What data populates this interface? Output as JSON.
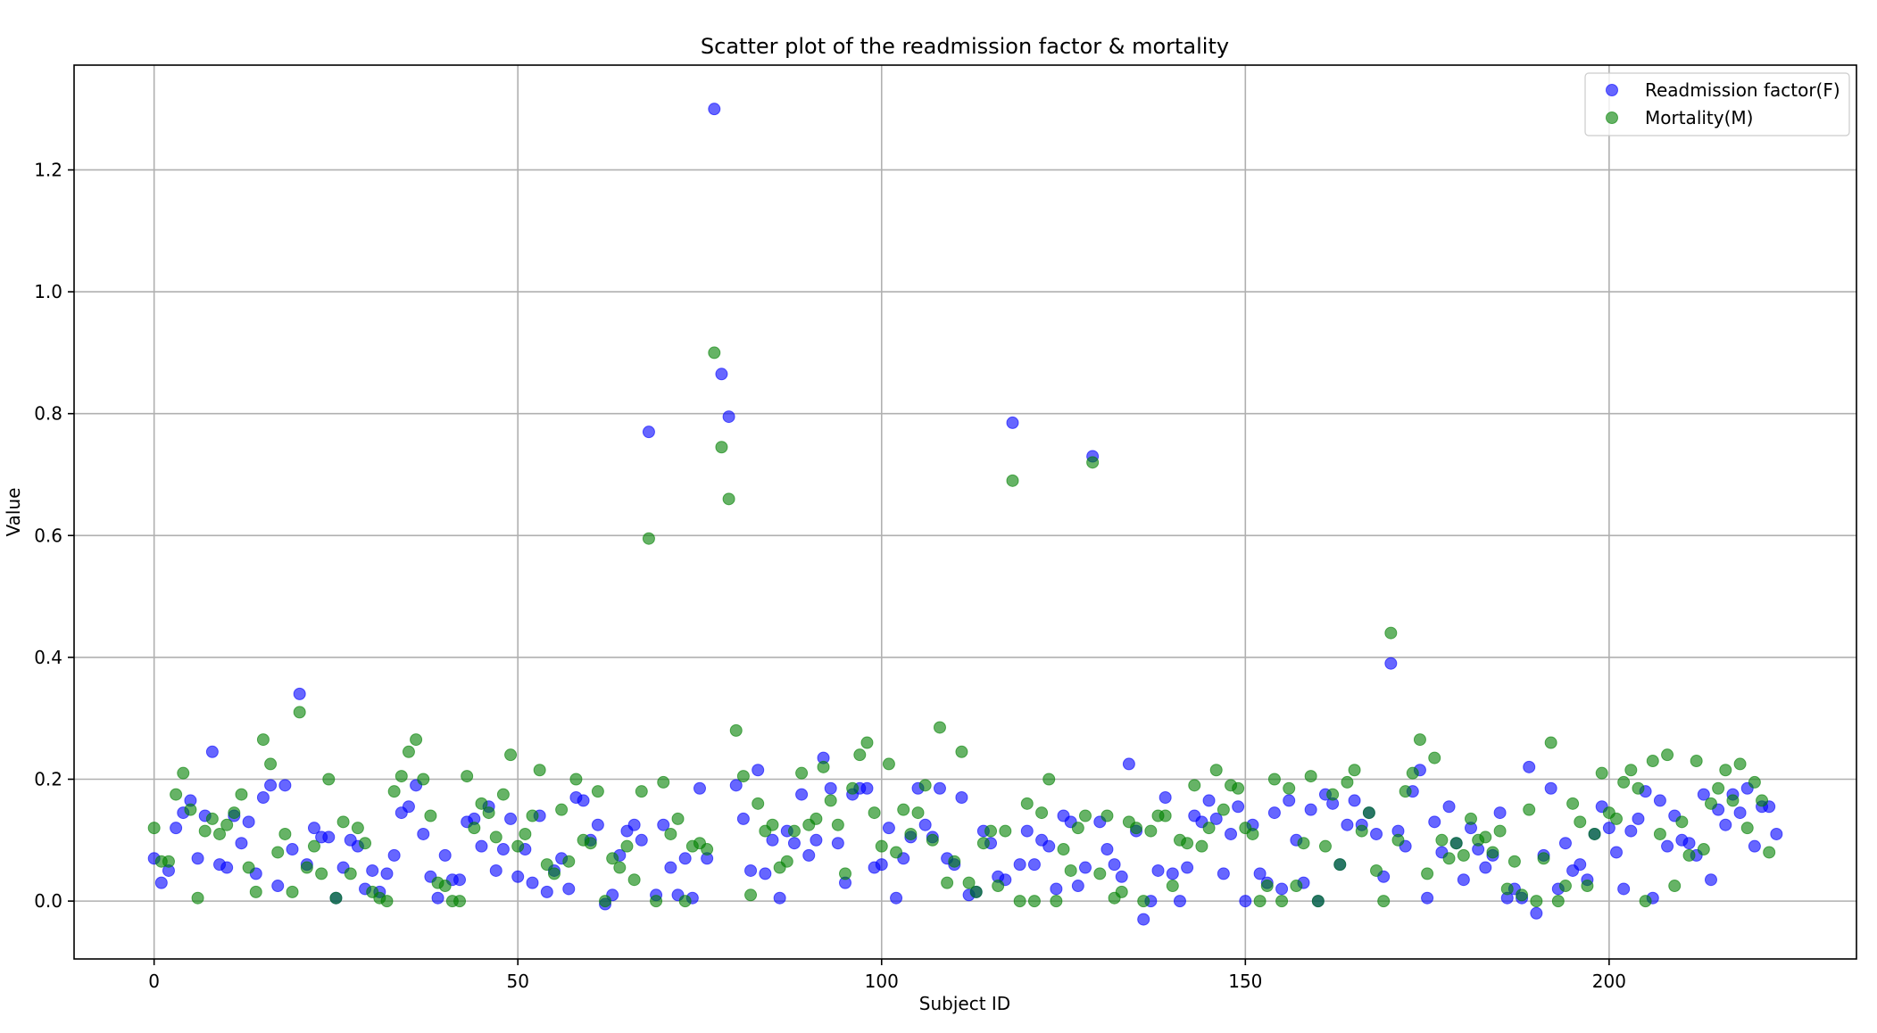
{
  "chart_data": {
    "type": "scatter",
    "title": "Scatter plot of the readmission factor & mortality",
    "xlabel": "Subject ID",
    "ylabel": "Value",
    "xlim": [
      -11,
      234
    ],
    "ylim": [
      -0.095,
      1.372
    ],
    "xticks": [
      0,
      50,
      100,
      150,
      200
    ],
    "yticks": [
      0.0,
      0.2,
      0.4,
      0.6,
      0.8,
      1.0,
      1.2
    ],
    "ytick_labels": [
      "0.0",
      "0.2",
      "0.4",
      "0.6",
      "0.8",
      "1.0",
      "1.2"
    ],
    "grid": true,
    "legend_position": "top-right",
    "series": [
      {
        "name": "Readmission factor(F)",
        "color": "#0000ff",
        "values": [
          0.07,
          0.03,
          0.05,
          0.12,
          0.145,
          0.165,
          0.07,
          0.14,
          0.245,
          0.06,
          0.055,
          0.14,
          0.095,
          0.13,
          0.045,
          0.17,
          0.19,
          0.025,
          0.19,
          0.085,
          0.34,
          0.06,
          0.12,
          0.105,
          0.105,
          0.005,
          0.055,
          0.1,
          0.09,
          0.02,
          0.05,
          0.015,
          0.045,
          0.075,
          0.145,
          0.155,
          0.19,
          0.11,
          0.04,
          0.005,
          0.075,
          0.035,
          0.035,
          0.13,
          0.135,
          0.09,
          0.155,
          0.05,
          0.085,
          0.135,
          0.04,
          0.085,
          0.03,
          0.14,
          0.015,
          0.05,
          0.07,
          0.02,
          0.17,
          0.165,
          0.1,
          0.125,
          -0.005,
          0.01,
          0.075,
          0.115,
          0.125,
          0.1,
          0.77,
          0.01,
          0.125,
          0.055,
          0.01,
          0.07,
          0.005,
          0.185,
          0.07,
          1.3,
          0.865,
          0.795,
          0.19,
          0.135,
          0.05,
          0.215,
          0.045,
          0.1,
          0.005,
          0.115,
          0.095,
          0.175,
          0.075,
          0.1,
          0.235,
          0.185,
          0.095,
          0.03,
          0.175,
          0.185,
          0.185,
          0.055,
          0.06,
          0.12,
          0.005,
          0.07,
          0.105,
          0.185,
          0.125,
          0.105,
          0.185,
          0.07,
          0.06,
          0.17,
          0.01,
          0.015,
          0.115,
          0.095,
          0.04,
          0.035,
          0.785,
          0.06,
          0.115,
          0.06,
          0.1,
          0.09,
          0.02,
          0.14,
          0.13,
          0.025,
          0.055,
          0.73,
          0.13,
          0.085,
          0.06,
          0.04,
          0.225,
          0.115,
          -0.03,
          0.0,
          0.05,
          0.17,
          0.045,
          0.0,
          0.055,
          0.14,
          0.13,
          0.165,
          0.135,
          0.045,
          0.11,
          0.155,
          0.0,
          0.125,
          0.045,
          0.03,
          0.145,
          0.02,
          0.165,
          0.1,
          0.03,
          0.15,
          0.0,
          0.175,
          0.16,
          0.06,
          0.125,
          0.165,
          0.125,
          0.145,
          0.11,
          0.04,
          0.39,
          0.115,
          0.09,
          0.18,
          0.215,
          0.005,
          0.13,
          0.08,
          0.155,
          0.095,
          0.035,
          0.12,
          0.085,
          0.055,
          0.075,
          0.145,
          0.005,
          0.02,
          0.005,
          0.22,
          -0.02,
          0.075,
          0.185,
          0.02,
          0.095,
          0.05,
          0.06,
          0.035,
          0.11,
          0.155,
          0.12,
          0.08,
          0.02,
          0.115,
          0.135,
          0.18,
          0.005,
          0.165,
          0.09,
          0.14,
          0.1,
          0.095,
          0.075,
          0.175,
          0.035,
          0.15,
          0.125,
          0.175,
          0.145,
          0.185,
          0.09,
          0.155,
          0.155,
          0.11
        ]
      },
      {
        "name": "Mortality(M)",
        "color": "#008000",
        "values": [
          0.12,
          0.065,
          0.065,
          0.175,
          0.21,
          0.15,
          0.005,
          0.115,
          0.135,
          0.11,
          0.125,
          0.145,
          0.175,
          0.055,
          0.015,
          0.265,
          0.225,
          0.08,
          0.11,
          0.015,
          0.31,
          0.055,
          0.09,
          0.045,
          0.2,
          0.005,
          0.13,
          0.045,
          0.12,
          0.095,
          0.015,
          0.005,
          0.0,
          0.18,
          0.205,
          0.245,
          0.265,
          0.2,
          0.14,
          0.03,
          0.025,
          0.0,
          0.0,
          0.205,
          0.12,
          0.16,
          0.145,
          0.105,
          0.175,
          0.24,
          0.09,
          0.11,
          0.14,
          0.215,
          0.06,
          0.045,
          0.15,
          0.065,
          0.2,
          0.1,
          0.095,
          0.18,
          0.0,
          0.07,
          0.055,
          0.09,
          0.035,
          0.18,
          0.595,
          0.0,
          0.195,
          0.11,
          0.135,
          0.0,
          0.09,
          0.095,
          0.085,
          0.9,
          0.745,
          0.66,
          0.28,
          0.205,
          0.01,
          0.16,
          0.115,
          0.125,
          0.055,
          0.065,
          0.115,
          0.21,
          0.125,
          0.135,
          0.22,
          0.165,
          0.125,
          0.045,
          0.185,
          0.24,
          0.26,
          0.145,
          0.09,
          0.225,
          0.08,
          0.15,
          0.11,
          0.145,
          0.19,
          0.1,
          0.285,
          0.03,
          0.065,
          0.245,
          0.03,
          0.015,
          0.095,
          0.115,
          0.025,
          0.115,
          0.69,
          0.0,
          0.16,
          0.0,
          0.145,
          0.2,
          0.0,
          0.085,
          0.05,
          0.12,
          0.14,
          0.72,
          0.045,
          0.14,
          0.005,
          0.015,
          0.13,
          0.12,
          0.0,
          0.115,
          0.14,
          0.14,
          0.025,
          0.1,
          0.095,
          0.19,
          0.09,
          0.12,
          0.215,
          0.15,
          0.19,
          0.185,
          0.12,
          0.11,
          0.0,
          0.025,
          0.2,
          0.0,
          0.185,
          0.025,
          0.095,
          0.205,
          0.0,
          0.09,
          0.175,
          0.06,
          0.195,
          0.215,
          0.115,
          0.145,
          0.05,
          0.0,
          0.44,
          0.1,
          0.18,
          0.21,
          0.265,
          0.045,
          0.235,
          0.1,
          0.07,
          0.095,
          0.075,
          0.135,
          0.1,
          0.105,
          0.08,
          0.115,
          0.02,
          0.065,
          0.01,
          0.15,
          0.0,
          0.07,
          0.26,
          0.0,
          0.025,
          0.16,
          0.13,
          0.025,
          0.11,
          0.21,
          0.145,
          0.135,
          0.195,
          0.215,
          0.185,
          0.0,
          0.23,
          0.11,
          0.24,
          0.025,
          0.13,
          0.075,
          0.23,
          0.085,
          0.16,
          0.185,
          0.215,
          0.165,
          0.225,
          0.12,
          0.195,
          0.165,
          0.08
        ]
      }
    ]
  }
}
